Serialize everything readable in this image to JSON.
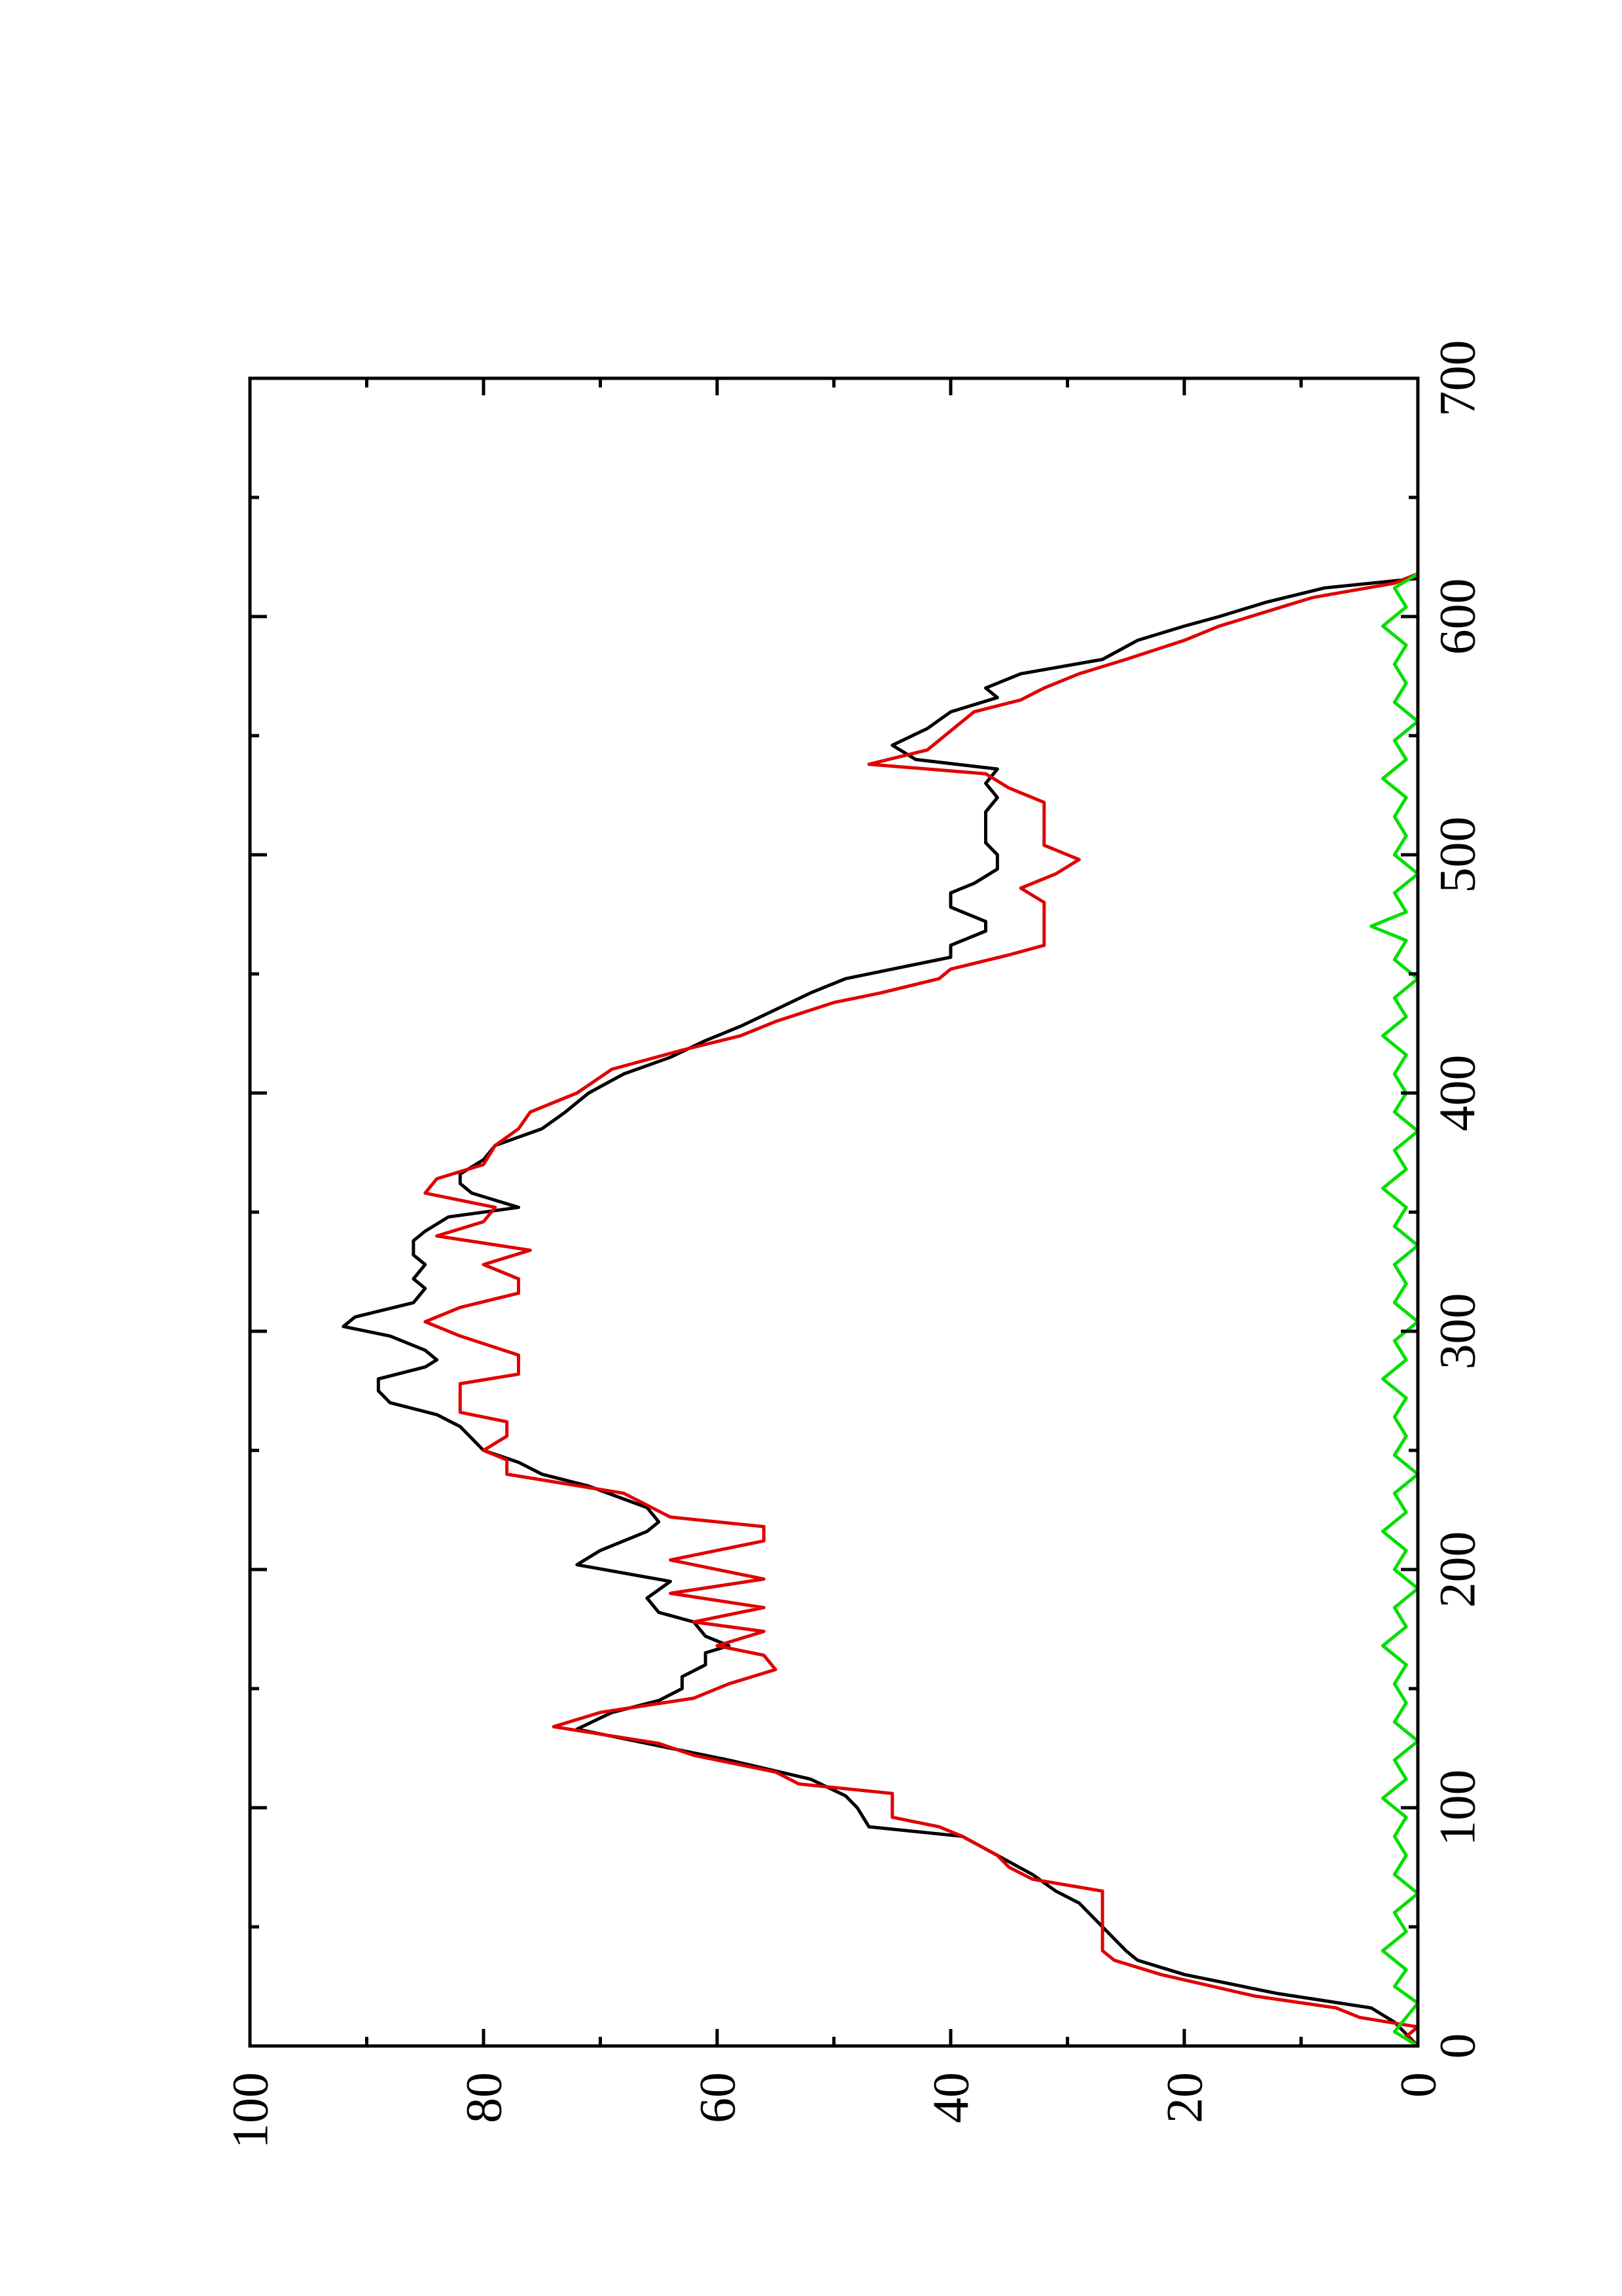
{
  "chart_data": {
    "type": "line",
    "title": "",
    "xlabel": "",
    "ylabel": "",
    "orientation": "rotated 90 degrees counter-clockwise",
    "xlim": [
      0,
      700
    ],
    "ylim": [
      0,
      100
    ],
    "x_ticks": [
      "0",
      "100",
      "200",
      "300",
      "400",
      "500",
      "600",
      "700"
    ],
    "y_ticks": [
      "0",
      "20",
      "40",
      "60",
      "80",
      "100"
    ],
    "x_minor_ticks": [
      50,
      150,
      250,
      350,
      450,
      550,
      650
    ],
    "y_minor_ticks": [
      10,
      30,
      50,
      70,
      90
    ],
    "grid": false,
    "legend": "none",
    "series": [
      {
        "color": "#000000",
        "points": [
          [
            0,
            0
          ],
          [
            5,
            1
          ],
          [
            10,
            2
          ],
          [
            16,
            4
          ],
          [
            22,
            12
          ],
          [
            30,
            20
          ],
          [
            36,
            24
          ],
          [
            40,
            25
          ],
          [
            50,
            27
          ],
          [
            60,
            29
          ],
          [
            65,
            31
          ],
          [
            72,
            33
          ],
          [
            80,
            36
          ],
          [
            88,
            39
          ],
          [
            92,
            47
          ],
          [
            100,
            48
          ],
          [
            105,
            49
          ],
          [
            112,
            52
          ],
          [
            120,
            59
          ],
          [
            128,
            67
          ],
          [
            133,
            72
          ],
          [
            140,
            69
          ],
          [
            145,
            65
          ],
          [
            150,
            63
          ],
          [
            155,
            63
          ],
          [
            160,
            61
          ],
          [
            165,
            61
          ],
          [
            168,
            59
          ],
          [
            172,
            61
          ],
          [
            178,
            62
          ],
          [
            182,
            65
          ],
          [
            188,
            66
          ],
          [
            195,
            64
          ],
          [
            202,
            72
          ],
          [
            208,
            70
          ],
          [
            216,
            66
          ],
          [
            220,
            65
          ],
          [
            226,
            66
          ],
          [
            235,
            71
          ],
          [
            240,
            75
          ],
          [
            245,
            77
          ],
          [
            250,
            80
          ],
          [
            255,
            81
          ],
          [
            260,
            82
          ],
          [
            265,
            84
          ],
          [
            270,
            88
          ],
          [
            275,
            89
          ],
          [
            280,
            89
          ],
          [
            285,
            85
          ],
          [
            288,
            84
          ],
          [
            292,
            85
          ],
          [
            298,
            88
          ],
          [
            302,
            92
          ],
          [
            306,
            91
          ],
          [
            312,
            86
          ],
          [
            318,
            85
          ],
          [
            322,
            86
          ],
          [
            328,
            85
          ],
          [
            332,
            86
          ],
          [
            338,
            86
          ],
          [
            342,
            85
          ],
          [
            348,
            83
          ],
          [
            352,
            77
          ],
          [
            358,
            81
          ],
          [
            362,
            82
          ],
          [
            366,
            82
          ],
          [
            372,
            80
          ],
          [
            378,
            79
          ],
          [
            385,
            75
          ],
          [
            392,
            73
          ],
          [
            400,
            71
          ],
          [
            408,
            68
          ],
          [
            415,
            64
          ],
          [
            422,
            61
          ],
          [
            428,
            58
          ],
          [
            435,
            55
          ],
          [
            442,
            52
          ],
          [
            448,
            49
          ],
          [
            452,
            45
          ],
          [
            457,
            40
          ],
          [
            462,
            40
          ],
          [
            468,
            37
          ],
          [
            472,
            37
          ],
          [
            478,
            40
          ],
          [
            484,
            40
          ],
          [
            488,
            38
          ],
          [
            494,
            36
          ],
          [
            500,
            36
          ],
          [
            505,
            37
          ],
          [
            512,
            37
          ],
          [
            518,
            37
          ],
          [
            524,
            36
          ],
          [
            530,
            37
          ],
          [
            536,
            36
          ],
          [
            540,
            43
          ],
          [
            546,
            45
          ],
          [
            553,
            42
          ],
          [
            560,
            40
          ],
          [
            566,
            36
          ],
          [
            570,
            37
          ],
          [
            576,
            34
          ],
          [
            582,
            27
          ],
          [
            590,
            24
          ],
          [
            596,
            20
          ],
          [
            600,
            17
          ],
          [
            606,
            13
          ],
          [
            612,
            8
          ],
          [
            616,
            0
          ]
        ]
      },
      {
        "color": "#e00000",
        "points": [
          [
            0,
            0
          ],
          [
            4,
            1
          ],
          [
            8,
            0
          ],
          [
            12,
            5
          ],
          [
            16,
            7
          ],
          [
            21,
            14
          ],
          [
            30,
            22
          ],
          [
            36,
            26
          ],
          [
            40,
            27
          ],
          [
            45,
            27
          ],
          [
            50,
            27
          ],
          [
            55,
            27
          ],
          [
            60,
            27
          ],
          [
            65,
            27
          ],
          [
            70,
            33
          ],
          [
            75,
            35
          ],
          [
            80,
            36
          ],
          [
            88,
            39
          ],
          [
            92,
            41
          ],
          [
            96,
            45
          ],
          [
            100,
            45
          ],
          [
            106,
            45
          ],
          [
            110,
            53
          ],
          [
            115,
            55
          ],
          [
            122,
            62
          ],
          [
            127,
            65
          ],
          [
            134,
            74
          ],
          [
            140,
            70
          ],
          [
            146,
            62
          ],
          [
            152,
            59
          ],
          [
            158,
            55
          ],
          [
            164,
            56
          ],
          [
            168,
            60
          ],
          [
            174,
            56
          ],
          [
            178,
            62
          ],
          [
            184,
            56
          ],
          [
            190,
            64
          ],
          [
            196,
            56
          ],
          [
            204,
            64
          ],
          [
            212,
            56
          ],
          [
            218,
            56
          ],
          [
            222,
            64
          ],
          [
            232,
            68
          ],
          [
            240,
            78
          ],
          [
            246,
            78
          ],
          [
            250,
            80
          ],
          [
            256,
            78
          ],
          [
            262,
            78
          ],
          [
            266,
            82
          ],
          [
            272,
            82
          ],
          [
            278,
            82
          ],
          [
            282,
            77
          ],
          [
            290,
            77
          ],
          [
            298,
            82
          ],
          [
            304,
            85
          ],
          [
            310,
            82
          ],
          [
            316,
            77
          ],
          [
            322,
            77
          ],
          [
            328,
            80
          ],
          [
            334,
            76
          ],
          [
            340,
            84
          ],
          [
            346,
            80
          ],
          [
            352,
            79
          ],
          [
            358,
            85
          ],
          [
            364,
            84
          ],
          [
            370,
            80
          ],
          [
            378,
            79
          ],
          [
            385,
            77
          ],
          [
            392,
            76
          ],
          [
            400,
            72
          ],
          [
            410,
            69
          ],
          [
            418,
            63
          ],
          [
            424,
            58
          ],
          [
            430,
            55
          ],
          [
            438,
            50
          ],
          [
            442,
            46
          ],
          [
            448,
            41
          ],
          [
            452,
            40
          ],
          [
            458,
            35
          ],
          [
            462,
            32
          ],
          [
            468,
            32
          ],
          [
            474,
            32
          ],
          [
            480,
            32
          ],
          [
            486,
            34
          ],
          [
            492,
            31
          ],
          [
            498,
            29
          ],
          [
            504,
            32
          ],
          [
            510,
            32
          ],
          [
            516,
            32
          ],
          [
            522,
            32
          ],
          [
            528,
            35
          ],
          [
            534,
            37
          ],
          [
            538,
            47
          ],
          [
            544,
            42
          ],
          [
            552,
            40
          ],
          [
            560,
            38
          ],
          [
            565,
            34
          ],
          [
            570,
            32
          ],
          [
            576,
            29
          ],
          [
            582,
            25
          ],
          [
            590,
            20
          ],
          [
            596,
            17
          ],
          [
            602,
            13
          ],
          [
            608,
            9
          ],
          [
            614,
            2
          ],
          [
            618,
            0
          ]
        ]
      },
      {
        "color": "#00e000",
        "points": [
          [
            0,
            0
          ],
          [
            6,
            2
          ],
          [
            12,
            1
          ],
          [
            18,
            0
          ],
          [
            25,
            2
          ],
          [
            32,
            1
          ],
          [
            40,
            3
          ],
          [
            48,
            1
          ],
          [
            56,
            2
          ],
          [
            64,
            0
          ],
          [
            72,
            2
          ],
          [
            80,
            1
          ],
          [
            88,
            2
          ],
          [
            96,
            1
          ],
          [
            104,
            3
          ],
          [
            112,
            1
          ],
          [
            120,
            2
          ],
          [
            128,
            0
          ],
          [
            136,
            2
          ],
          [
            144,
            1
          ],
          [
            152,
            2
          ],
          [
            160,
            1
          ],
          [
            168,
            3
          ],
          [
            176,
            1
          ],
          [
            184,
            2
          ],
          [
            192,
            0
          ],
          [
            200,
            2
          ],
          [
            208,
            1
          ],
          [
            216,
            3
          ],
          [
            224,
            1
          ],
          [
            232,
            2
          ],
          [
            240,
            0
          ],
          [
            248,
            2
          ],
          [
            256,
            1
          ],
          [
            264,
            2
          ],
          [
            272,
            1
          ],
          [
            280,
            3
          ],
          [
            288,
            1
          ],
          [
            296,
            2
          ],
          [
            304,
            0
          ],
          [
            312,
            2
          ],
          [
            320,
            1
          ],
          [
            328,
            2
          ],
          [
            336,
            0
          ],
          [
            344,
            2
          ],
          [
            352,
            1
          ],
          [
            360,
            3
          ],
          [
            368,
            1
          ],
          [
            376,
            2
          ],
          [
            384,
            0
          ],
          [
            392,
            2
          ],
          [
            400,
            1
          ],
          [
            408,
            2
          ],
          [
            416,
            1
          ],
          [
            424,
            3
          ],
          [
            432,
            1
          ],
          [
            440,
            2
          ],
          [
            448,
            0
          ],
          [
            456,
            2
          ],
          [
            464,
            1
          ],
          [
            470,
            4
          ],
          [
            476,
            1
          ],
          [
            484,
            2
          ],
          [
            492,
            0
          ],
          [
            500,
            2
          ],
          [
            508,
            1
          ],
          [
            516,
            2
          ],
          [
            524,
            1
          ],
          [
            532,
            3
          ],
          [
            540,
            1
          ],
          [
            548,
            2
          ],
          [
            556,
            0
          ],
          [
            564,
            2
          ],
          [
            572,
            1
          ],
          [
            580,
            2
          ],
          [
            588,
            1
          ],
          [
            596,
            3
          ],
          [
            604,
            1
          ],
          [
            612,
            2
          ],
          [
            618,
            0
          ]
        ]
      }
    ]
  }
}
